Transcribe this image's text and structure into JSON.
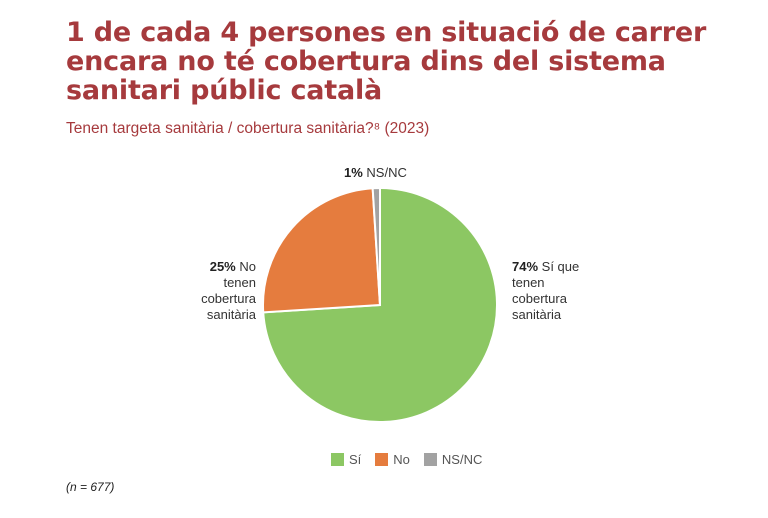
{
  "title_lines": [
    "1 de cada 4 persones en situació de carrer",
    "encara no té cobertura dins del sistema",
    "sanitari públic català"
  ],
  "subtitle": "Tenen targeta sanitària / cobertura sanitària?⁸  (2023)",
  "chart_data": {
    "type": "pie",
    "slices": [
      {
        "key": "si",
        "legend": "Sí",
        "value": 74,
        "pct_label": "74%",
        "label_lines": [
          "Sí que",
          "tenen",
          "cobertura",
          "sanitària"
        ],
        "color": "#8cc763"
      },
      {
        "key": "no",
        "legend": "No",
        "value": 25,
        "pct_label": "25%",
        "label_lines": [
          "No",
          "tenen",
          "cobertura",
          "sanitària"
        ],
        "color": "#e57c3e"
      },
      {
        "key": "nsnc",
        "legend": "NS/NC",
        "value": 1,
        "pct_label": "1%",
        "label_lines": [
          "NS/NC"
        ],
        "color": "#a2a2a2"
      }
    ]
  },
  "note": "(n = 677)"
}
